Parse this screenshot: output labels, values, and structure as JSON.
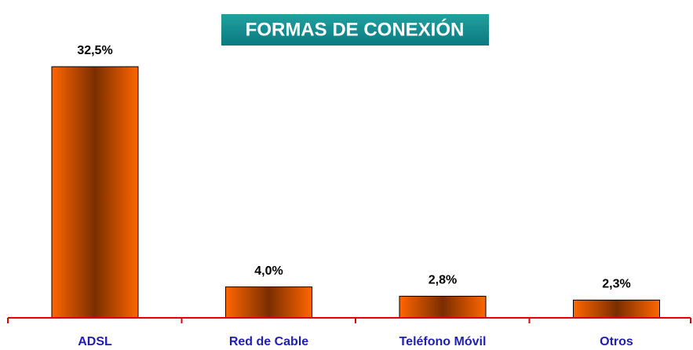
{
  "chart_data": {
    "type": "bar",
    "title": "FORMAS DE CONEXIÓN",
    "categories": [
      "ADSL",
      "Red de Cable",
      "Teléfono Móvil",
      "Otros"
    ],
    "values": [
      32.5,
      4.0,
      2.8,
      2.3
    ],
    "value_labels": [
      "32,5%",
      "4,0%",
      "2,8%",
      "2,3%"
    ],
    "color": "#ff6600"
  }
}
